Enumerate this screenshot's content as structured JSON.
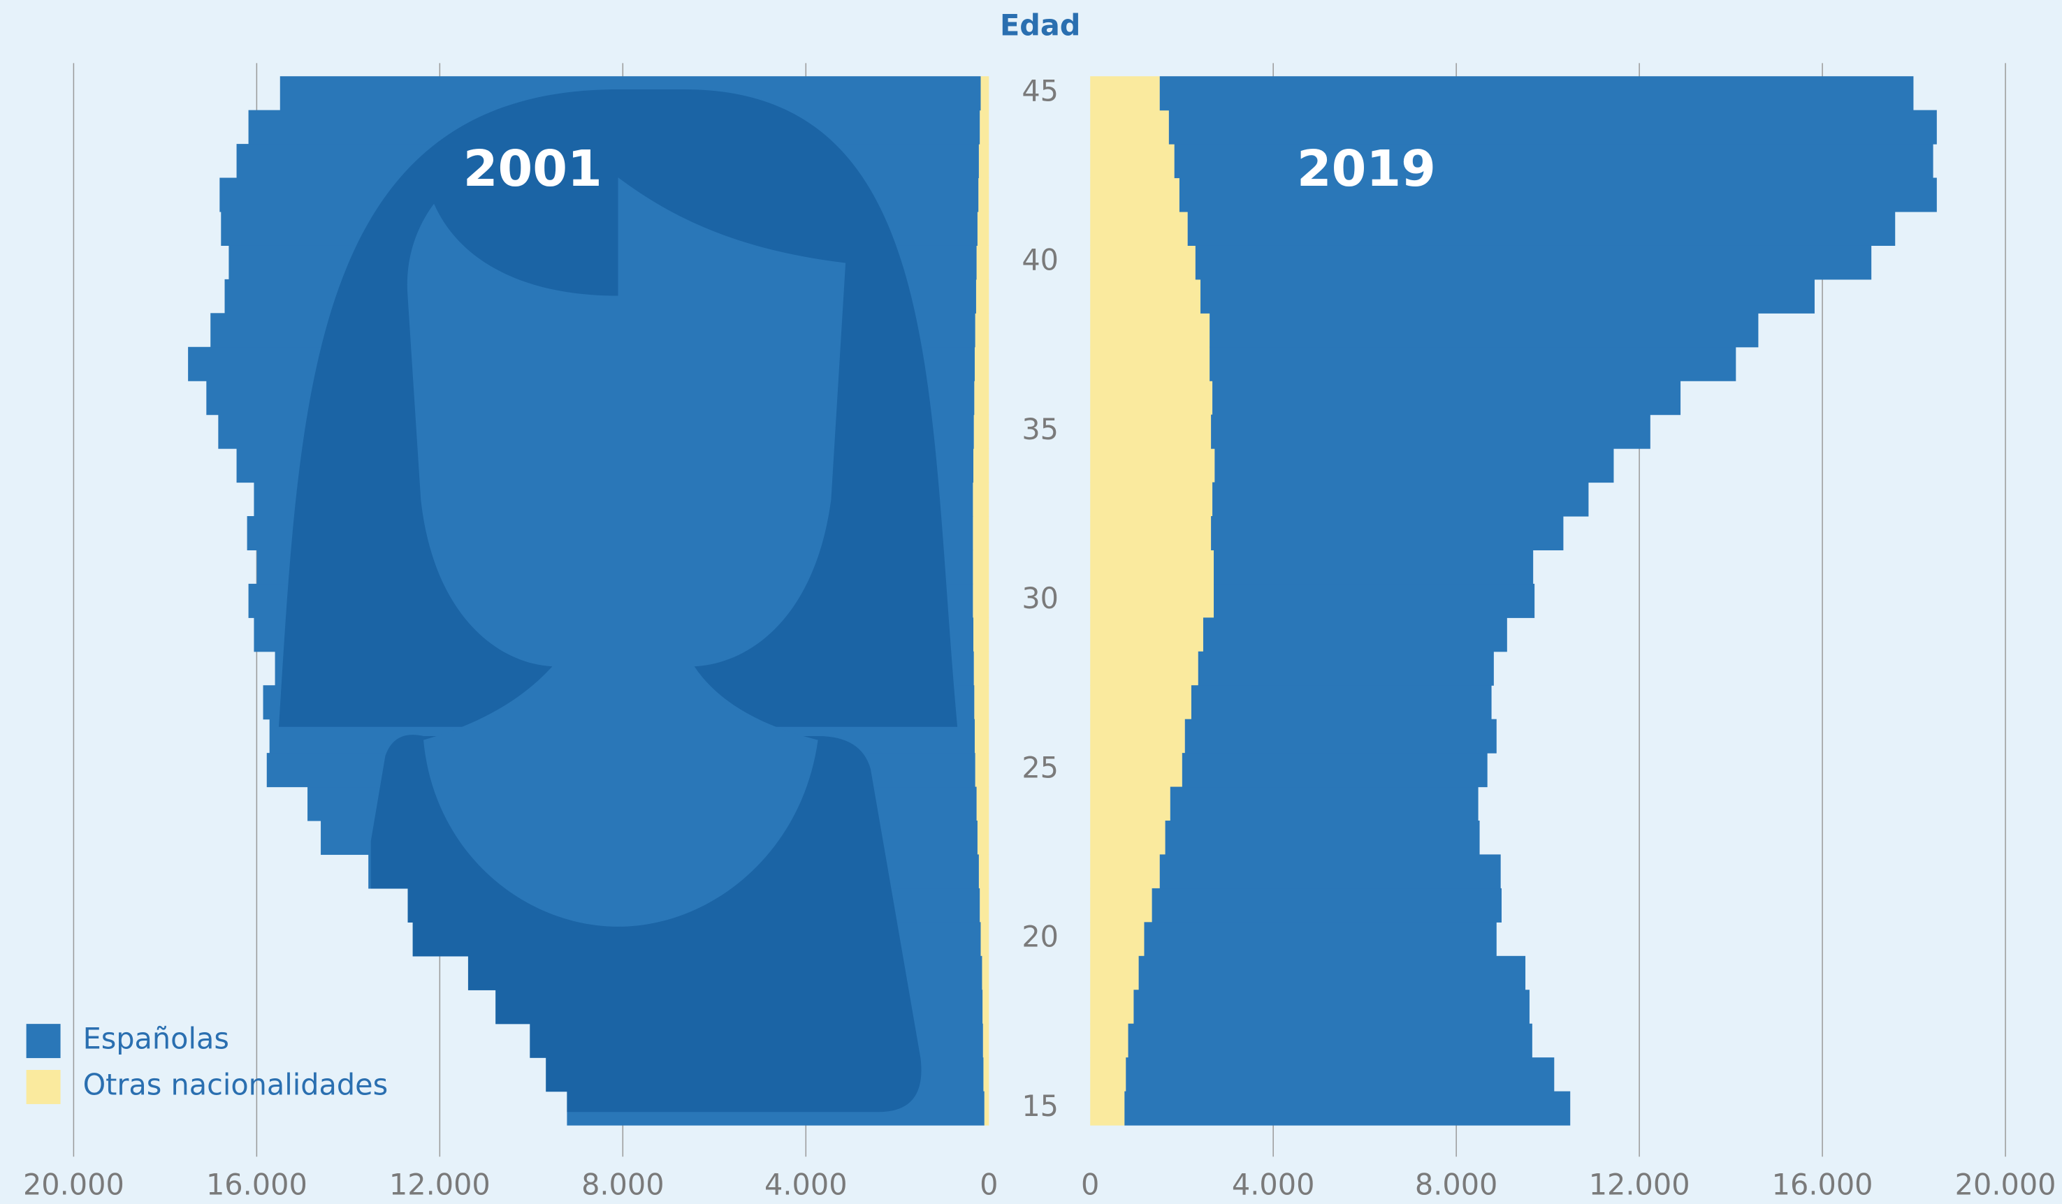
{
  "chart_data": {
    "type": "pyramid",
    "y_label": "Edad",
    "panels": [
      "2001",
      "2019"
    ],
    "x": [
      15,
      16,
      17,
      18,
      19,
      20,
      21,
      22,
      23,
      24,
      25,
      26,
      27,
      28,
      29,
      30,
      31,
      32,
      33,
      34,
      35,
      36,
      37,
      38,
      39,
      40,
      41,
      42,
      43,
      44,
      45
    ],
    "ylim": [
      14.5,
      45.5
    ],
    "yticks": [
      15,
      20,
      25,
      30,
      35,
      40,
      45
    ],
    "xlim": [
      0,
      20000
    ],
    "xticks": [
      0,
      {
        "value": 4000,
        "label": "4.000"
      },
      {
        "value": 8000,
        "label": "8.000"
      },
      {
        "value": 12000,
        "label": "12.000"
      },
      {
        "value": 16000,
        "label": "16.000"
      },
      {
        "value": 20000,
        "label": "20.000"
      }
    ],
    "grid": true,
    "legend": "lower left",
    "series": [
      {
        "name": "Españolas",
        "color": "#2a77b8",
        "values": [
          [
            9120,
            9560,
            9900,
            10640,
            11230,
            12410,
            12500,
            13340,
            14350,
            14620,
            15480,
            15410,
            15540,
            15270,
            15720,
            15830,
            15650,
            15860,
            15710,
            16100,
            16510,
            16780,
            17190,
            16710,
            16420,
            16340,
            16530,
            16580,
            16220,
            15980,
            15310
          ],
          [
            9740,
            9360,
            8830,
            8650,
            8450,
            7700,
            7640,
            7450,
            6870,
            6730,
            6670,
            6810,
            6560,
            6460,
            6640,
            7010,
            6980,
            7700,
            8220,
            8720,
            9600,
            10230,
            11500,
            11990,
            13420,
            14770,
            15460,
            16550,
            16580,
            16780,
            16470
          ]
        ]
      },
      {
        "name": "Otras nacionalidades",
        "color": "#faea9e",
        "values": [
          [
            100,
            120,
            130,
            140,
            150,
            180,
            200,
            220,
            250,
            270,
            300,
            310,
            320,
            330,
            340,
            350,
            350,
            350,
            350,
            340,
            330,
            320,
            310,
            300,
            280,
            270,
            250,
            230,
            220,
            200,
            180
          ],
          [
            750,
            780,
            830,
            950,
            1060,
            1180,
            1350,
            1520,
            1640,
            1750,
            2010,
            2070,
            2210,
            2360,
            2470,
            2700,
            2700,
            2640,
            2670,
            2720,
            2640,
            2670,
            2610,
            2610,
            2410,
            2300,
            2130,
            1950,
            1840,
            1720,
            1520
          ]
        ]
      }
    ]
  }
}
